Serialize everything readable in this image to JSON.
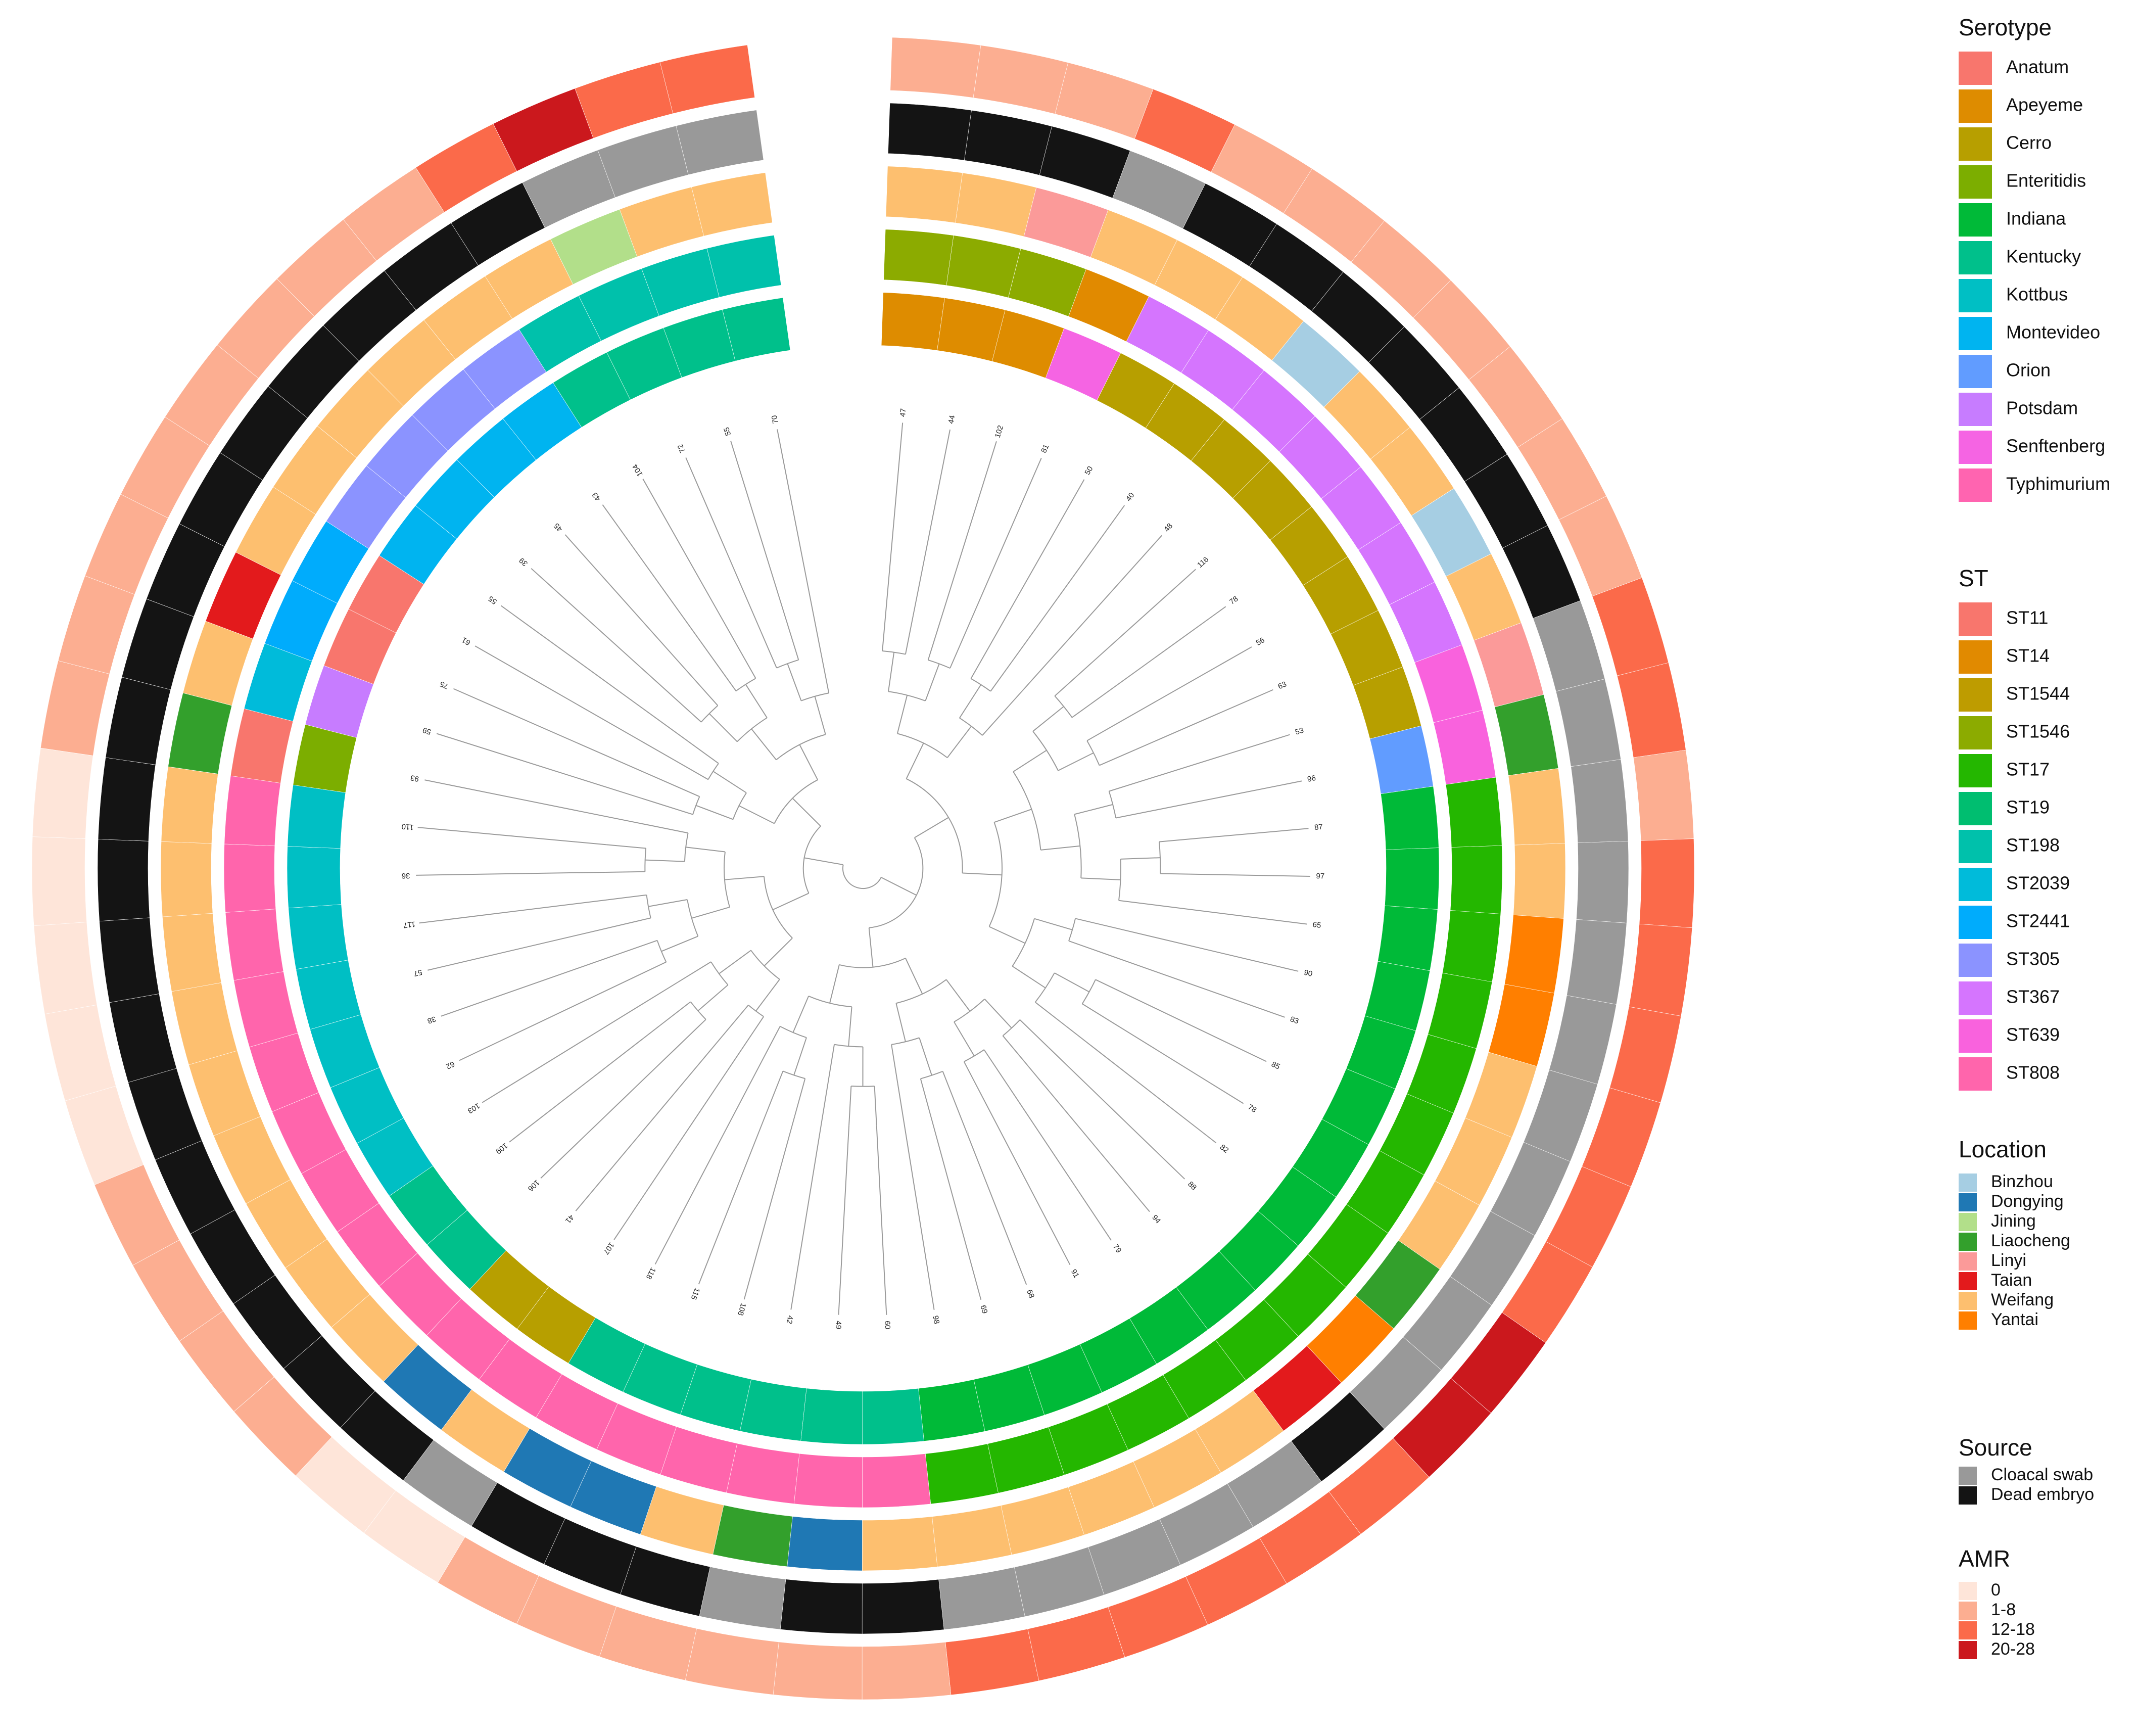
{
  "figure": {
    "legends": [
      {
        "title": "Serotype",
        "items": [
          {
            "label": "Anatum",
            "color": "#F8766D"
          },
          {
            "label": "Apeyeme",
            "color": "#DE8C00"
          },
          {
            "label": "Cerro",
            "color": "#B79F00"
          },
          {
            "label": "Enteritidis",
            "color": "#7CAE00"
          },
          {
            "label": "Indiana",
            "color": "#00BA38"
          },
          {
            "label": "Kentucky",
            "color": "#00C08B"
          },
          {
            "label": "Kottbus",
            "color": "#00BFC4"
          },
          {
            "label": "Montevideo",
            "color": "#00B4F0"
          },
          {
            "label": "Orion",
            "color": "#619CFF"
          },
          {
            "label": "Potsdam",
            "color": "#C77CFF"
          },
          {
            "label": "Senftenberg",
            "color": "#F564E3"
          },
          {
            "label": "Typhimurium",
            "color": "#FF64B0"
          }
        ]
      },
      {
        "title": "ST",
        "items": [
          {
            "label": "ST11",
            "color": "#F8766D"
          },
          {
            "label": "ST14",
            "color": "#E18A00"
          },
          {
            "label": "ST1544",
            "color": "#BE9C00"
          },
          {
            "label": "ST1546",
            "color": "#8CAB00"
          },
          {
            "label": "ST17",
            "color": "#24B700"
          },
          {
            "label": "ST19",
            "color": "#00BE70"
          },
          {
            "label": "ST198",
            "color": "#00C1AB"
          },
          {
            "label": "ST2039",
            "color": "#00BBDA"
          },
          {
            "label": "ST2441",
            "color": "#00ACFC"
          },
          {
            "label": "ST305",
            "color": "#8B93FF"
          },
          {
            "label": "ST367",
            "color": "#D575FE"
          },
          {
            "label": "ST639",
            "color": "#F962DD"
          },
          {
            "label": "ST808",
            "color": "#FF65AC"
          }
        ]
      },
      {
        "title": "Location",
        "items": [
          {
            "label": "Binzhou",
            "color": "#A6CEE3"
          },
          {
            "label": "Dongying",
            "color": "#1F78B4"
          },
          {
            "label": "Jining",
            "color": "#B2DF8A"
          },
          {
            "label": "Liaocheng",
            "color": "#33A02C"
          },
          {
            "label": "Linyi",
            "color": "#FB9A99"
          },
          {
            "label": "Taian",
            "color": "#E31A1C"
          },
          {
            "label": "Weifang",
            "color": "#FDBF6F"
          },
          {
            "label": "Yantai",
            "color": "#FF7F00"
          }
        ]
      },
      {
        "title": "Source",
        "items": [
          {
            "label": "Cloacal swab",
            "color": "#999999"
          },
          {
            "label": "Dead embryo",
            "color": "#141414"
          }
        ]
      },
      {
        "title": "AMR",
        "items": [
          {
            "label": "0",
            "color": "#FEE5D9"
          },
          {
            "label": "1-8",
            "color": "#FCAE91"
          },
          {
            "label": "12-18",
            "color": "#FB6A4A"
          },
          {
            "label": "20-28",
            "color": "#CB181D"
          }
        ]
      }
    ],
    "leaves": [
      {
        "id": "47",
        "serotype": "Apeyeme",
        "st": "ST1546",
        "location": "Weifang",
        "source": "Dead embryo",
        "amr": "1-8"
      },
      {
        "id": "44",
        "serotype": "Apeyeme",
        "st": "ST1546",
        "location": "Weifang",
        "source": "Dead embryo",
        "amr": "1-8"
      },
      {
        "id": "102",
        "serotype": "Apeyeme",
        "st": "ST1546",
        "location": "Linyi",
        "source": "Dead embryo",
        "amr": "1-8"
      },
      {
        "id": "81",
        "serotype": "Senftenberg",
        "st": "ST14",
        "location": "Weifang",
        "source": "Cloacal swab",
        "amr": "12-18"
      },
      {
        "id": "50",
        "serotype": "Cerro",
        "st": "ST367",
        "location": "Weifang",
        "source": "Dead embryo",
        "amr": "1-8"
      },
      {
        "id": "40",
        "serotype": "Cerro",
        "st": "ST367",
        "location": "Weifang",
        "source": "Dead embryo",
        "amr": "1-8"
      },
      {
        "id": "48",
        "serotype": "Cerro",
        "st": "ST367",
        "location": "Binzhou",
        "source": "Dead embryo",
        "amr": "1-8"
      },
      {
        "id": "116",
        "serotype": "Cerro",
        "st": "ST367",
        "location": "Weifang",
        "source": "Dead embryo",
        "amr": "1-8"
      },
      {
        "id": "78",
        "serotype": "Cerro",
        "st": "ST367",
        "location": "Weifang",
        "source": "Dead embryo",
        "amr": "1-8"
      },
      {
        "id": "56",
        "serotype": "Cerro",
        "st": "ST367",
        "location": "Binzhou",
        "source": "Dead embryo",
        "amr": "1-8"
      },
      {
        "id": "63",
        "serotype": "Cerro",
        "st": "ST367",
        "location": "Weifang",
        "source": "Dead embryo",
        "amr": "1-8"
      },
      {
        "id": "53",
        "serotype": "Cerro",
        "st": "ST639",
        "location": "Linyi",
        "source": "Cloacal swab",
        "amr": "12-18"
      },
      {
        "id": "96",
        "serotype": "Orion",
        "st": "ST639",
        "location": "Liaocheng",
        "source": "Cloacal swab",
        "amr": "12-18"
      },
      {
        "id": "87",
        "serotype": "Indiana",
        "st": "ST17",
        "location": "Weifang",
        "source": "Cloacal swab",
        "amr": "1-8"
      },
      {
        "id": "97",
        "serotype": "Indiana",
        "st": "ST17",
        "location": "Weifang",
        "source": "Cloacal swab",
        "amr": "12-18"
      },
      {
        "id": "65",
        "serotype": "Indiana",
        "st": "ST17",
        "location": "Yantai",
        "source": "Cloacal swab",
        "amr": "12-18"
      },
      {
        "id": "90",
        "serotype": "Indiana",
        "st": "ST17",
        "location": "Yantai",
        "source": "Cloacal swab",
        "amr": "12-18"
      },
      {
        "id": "83",
        "serotype": "Indiana",
        "st": "ST17",
        "location": "Weifang",
        "source": "Cloacal swab",
        "amr": "12-18"
      },
      {
        "id": "85",
        "serotype": "Indiana",
        "st": "ST17",
        "location": "Weifang",
        "source": "Cloacal swab",
        "amr": "12-18"
      },
      {
        "id": "78",
        "serotype": "Indiana",
        "st": "ST17",
        "location": "Weifang",
        "source": "Cloacal swab",
        "amr": "12-18"
      },
      {
        "id": "82",
        "serotype": "Indiana",
        "st": "ST17",
        "location": "Liaocheng",
        "source": "Cloacal swab",
        "amr": "20-28"
      },
      {
        "id": "88",
        "serotype": "Indiana",
        "st": "ST17",
        "location": "Yantai",
        "source": "Cloacal swab",
        "amr": "20-28"
      },
      {
        "id": "94",
        "serotype": "Indiana",
        "st": "ST17",
        "location": "Taian",
        "source": "Dead embryo",
        "amr": "12-18"
      },
      {
        "id": "79",
        "serotype": "Indiana",
        "st": "ST17",
        "location": "Weifang",
        "source": "Cloacal swab",
        "amr": "12-18"
      },
      {
        "id": "91",
        "serotype": "Indiana",
        "st": "ST17",
        "location": "Weifang",
        "source": "Cloacal swab",
        "amr": "12-18"
      },
      {
        "id": "68",
        "serotype": "Indiana",
        "st": "ST17",
        "location": "Weifang",
        "source": "Cloacal swab",
        "amr": "12-18"
      },
      {
        "id": "69",
        "serotype": "Indiana",
        "st": "ST17",
        "location": "Weifang",
        "source": "Cloacal swab",
        "amr": "12-18"
      },
      {
        "id": "98",
        "serotype": "Indiana",
        "st": "ST17",
        "location": "Weifang",
        "source": "Cloacal swab",
        "amr": "12-18"
      },
      {
        "id": "60",
        "serotype": "Kentucky",
        "st": "ST808",
        "location": "Weifang",
        "source": "Dead embryo",
        "amr": "1-8"
      },
      {
        "id": "49",
        "serotype": "Kentucky",
        "st": "ST808",
        "location": "Dongying",
        "source": "Dead embryo",
        "amr": "1-8"
      },
      {
        "id": "42",
        "serotype": "Kentucky",
        "st": "ST808",
        "location": "Liaocheng",
        "source": "Cloacal swab",
        "amr": "1-8"
      },
      {
        "id": "108",
        "serotype": "Kentucky",
        "st": "ST808",
        "location": "Weifang",
        "source": "Dead embryo",
        "amr": "1-8"
      },
      {
        "id": "115",
        "serotype": "Kentucky",
        "st": "ST808",
        "location": "Dongying",
        "source": "Dead embryo",
        "amr": "1-8"
      },
      {
        "id": "118",
        "serotype": "Kentucky",
        "st": "ST808",
        "location": "Dongying",
        "source": "Dead embryo",
        "amr": "1-8"
      },
      {
        "id": "107",
        "serotype": "Cerro",
        "st": "ST808",
        "location": "Weifang",
        "source": "Cloacal swab",
        "amr": "0"
      },
      {
        "id": "41",
        "serotype": "Cerro",
        "st": "ST808",
        "location": "Dongying",
        "source": "Dead embryo",
        "amr": "0"
      },
      {
        "id": "106",
        "serotype": "Kentucky",
        "st": "ST808",
        "location": "Weifang",
        "source": "Dead embryo",
        "amr": "1-8"
      },
      {
        "id": "109",
        "serotype": "Kentucky",
        "st": "ST808",
        "location": "Weifang",
        "source": "Dead embryo",
        "amr": "1-8"
      },
      {
        "id": "103",
        "serotype": "Kottbus",
        "st": "ST808",
        "location": "Weifang",
        "source": "Dead embryo",
        "amr": "1-8"
      },
      {
        "id": "62",
        "serotype": "Kottbus",
        "st": "ST808",
        "location": "Weifang",
        "source": "Dead embryo",
        "amr": "1-8"
      },
      {
        "id": "38",
        "serotype": "Kottbus",
        "st": "ST808",
        "location": "Weifang",
        "source": "Dead embryo",
        "amr": "0"
      },
      {
        "id": "57",
        "serotype": "Kottbus",
        "st": "ST808",
        "location": "Weifang",
        "source": "Dead embryo",
        "amr": "0"
      },
      {
        "id": "117",
        "serotype": "Kottbus",
        "st": "ST808",
        "location": "Weifang",
        "source": "Dead embryo",
        "amr": "0"
      },
      {
        "id": "36",
        "serotype": "Kottbus",
        "st": "ST808",
        "location": "Weifang",
        "source": "Dead embryo",
        "amr": "0"
      },
      {
        "id": "110",
        "serotype": "Kottbus",
        "st": "ST808",
        "location": "Weifang",
        "source": "Dead embryo",
        "amr": "0"
      },
      {
        "id": "93",
        "serotype": "Enteritidis",
        "st": "ST11",
        "location": "Liaocheng",
        "source": "Dead embryo",
        "amr": "1-8"
      },
      {
        "id": "59",
        "serotype": "Potsdam",
        "st": "ST2039",
        "location": "Weifang",
        "source": "Dead embryo",
        "amr": "1-8"
      },
      {
        "id": "75",
        "serotype": "Anatum",
        "st": "ST2441",
        "location": "Taian",
        "source": "Dead embryo",
        "amr": "1-8"
      },
      {
        "id": "61",
        "serotype": "Anatum",
        "st": "ST2441",
        "location": "Weifang",
        "source": "Dead embryo",
        "amr": "1-8"
      },
      {
        "id": "55",
        "serotype": "Montevideo",
        "st": "ST305",
        "location": "Weifang",
        "source": "Dead embryo",
        "amr": "1-8"
      },
      {
        "id": "39",
        "serotype": "Montevideo",
        "st": "ST305",
        "location": "Weifang",
        "source": "Dead embryo",
        "amr": "1-8"
      },
      {
        "id": "45",
        "serotype": "Montevideo",
        "st": "ST305",
        "location": "Weifang",
        "source": "Dead embryo",
        "amr": "1-8"
      },
      {
        "id": "43",
        "serotype": "Montevideo",
        "st": "ST305",
        "location": "Weifang",
        "source": "Dead embryo",
        "amr": "1-8"
      },
      {
        "id": "104",
        "serotype": "Kentucky",
        "st": "ST198",
        "location": "Weifang",
        "source": "Dead embryo",
        "amr": "12-18"
      },
      {
        "id": "72",
        "serotype": "Kentucky",
        "st": "ST198",
        "location": "Jining",
        "source": "Cloacal swab",
        "amr": "20-28"
      },
      {
        "id": "55",
        "serotype": "Kentucky",
        "st": "ST198",
        "location": "Weifang",
        "source": "Cloacal swab",
        "amr": "12-18"
      },
      {
        "id": "70",
        "serotype": "Kentucky",
        "st": "ST198",
        "location": "Weifang",
        "source": "Cloacal swab",
        "amr": "12-18"
      }
    ]
  }
}
